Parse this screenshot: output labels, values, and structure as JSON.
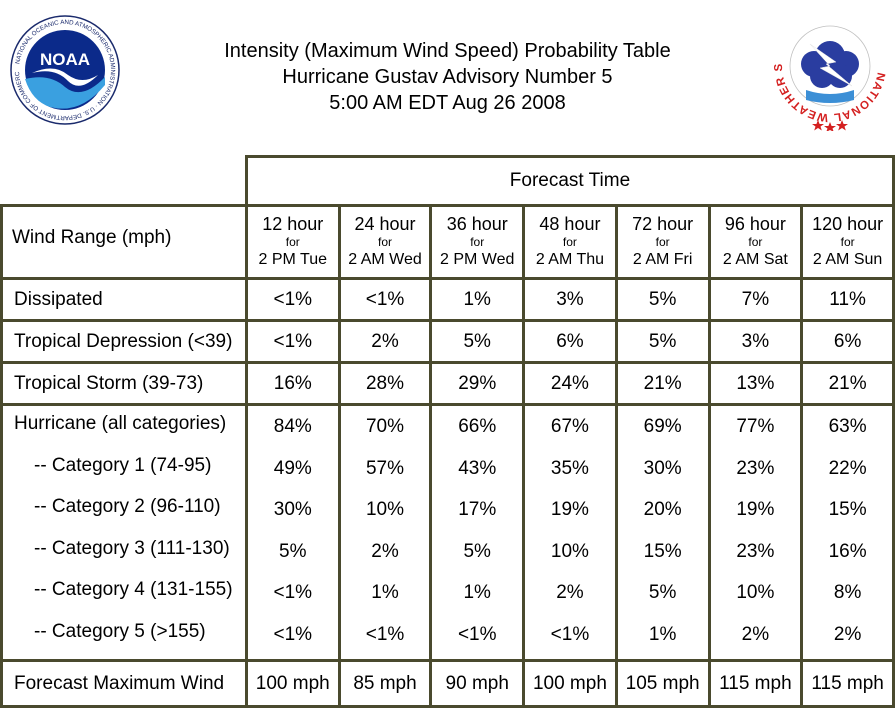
{
  "header": {
    "title_line1": "Intensity (Maximum Wind Speed) Probability Table",
    "title_line2": "Hurricane Gustav Advisory Number 5",
    "title_line3": "5:00 AM EDT Aug 26 2008"
  },
  "logos": {
    "noaa_text": "NOAA",
    "noaa_ring": "NATIONAL OCEANIC AND ATMOSPHERIC ADMINISTRATION · U.S. DEPARTMENT OF COMMERCE",
    "nws_ring": "NATIONAL WEATHER SERVICE"
  },
  "table": {
    "forecast_time_label": "Forecast Time",
    "wind_range_label": "Wind Range (mph)",
    "columns": [
      {
        "hours": "12 hour",
        "for": "for",
        "when": "2 PM Tue"
      },
      {
        "hours": "24 hour",
        "for": "for",
        "when": "2 AM Wed"
      },
      {
        "hours": "36 hour",
        "for": "for",
        "when": "2 PM Wed"
      },
      {
        "hours": "48 hour",
        "for": "for",
        "when": "2 AM Thu"
      },
      {
        "hours": "72 hour",
        "for": "for",
        "when": "2 AM Fri"
      },
      {
        "hours": "96 hour",
        "for": "for",
        "when": "2 AM Sat"
      },
      {
        "hours": "120 hour",
        "for": "for",
        "when": "2 AM Sun"
      }
    ],
    "rows": {
      "dissipated": {
        "label": "Dissipated",
        "values": [
          "<1%",
          "<1%",
          "1%",
          "3%",
          "5%",
          "7%",
          "11%"
        ]
      },
      "td": {
        "label": "Tropical Depression (<39)",
        "values": [
          "<1%",
          "2%",
          "5%",
          "6%",
          "5%",
          "3%",
          "6%"
        ]
      },
      "ts": {
        "label": "Tropical Storm (39-73)",
        "values": [
          "16%",
          "28%",
          "29%",
          "24%",
          "21%",
          "13%",
          "21%"
        ]
      }
    },
    "hurricane": [
      {
        "label": "Hurricane (all categories)",
        "values": [
          "84%",
          "70%",
          "66%",
          "67%",
          "69%",
          "77%",
          "63%"
        ]
      },
      {
        "label": "-- Category 1 (74-95)",
        "values": [
          "49%",
          "57%",
          "43%",
          "35%",
          "30%",
          "23%",
          "22%"
        ]
      },
      {
        "label": "-- Category 2 (96-110)",
        "values": [
          "30%",
          "10%",
          "17%",
          "19%",
          "20%",
          "19%",
          "15%"
        ]
      },
      {
        "label": "-- Category 3 (111-130)",
        "values": [
          "5%",
          "2%",
          "5%",
          "10%",
          "15%",
          "23%",
          "16%"
        ]
      },
      {
        "label": "-- Category 4 (131-155)",
        "values": [
          "<1%",
          "1%",
          "1%",
          "2%",
          "5%",
          "10%",
          "8%"
        ]
      },
      {
        "label": "-- Category 5 (>155)",
        "values": [
          "<1%",
          "<1%",
          "<1%",
          "<1%",
          "1%",
          "2%",
          "2%"
        ]
      }
    ],
    "max_wind": {
      "label": "Forecast Maximum Wind",
      "values": [
        "100 mph",
        "85 mph",
        "90 mph",
        "100 mph",
        "105 mph",
        "115 mph",
        "115 mph"
      ]
    }
  }
}
